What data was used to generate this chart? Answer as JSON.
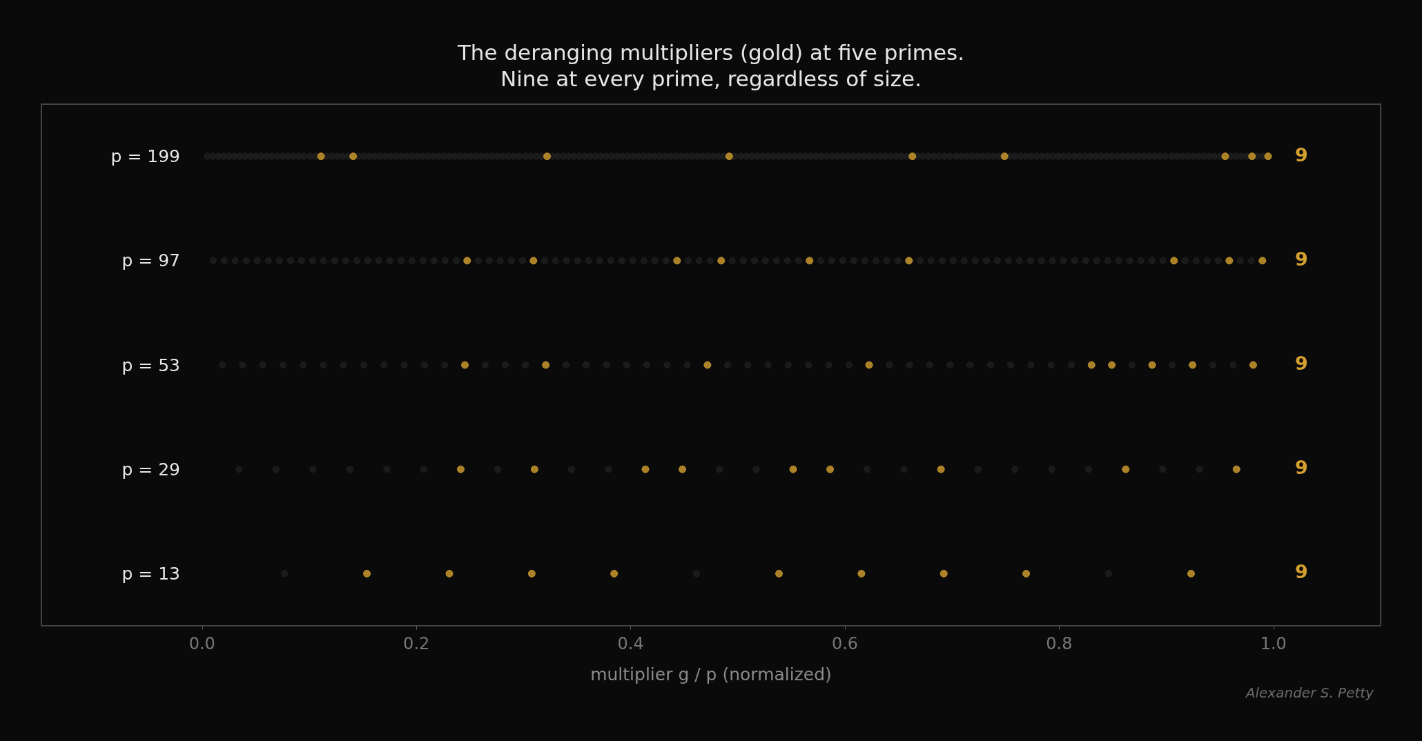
{
  "chart_data": {
    "type": "scatter",
    "orientation": "horizontal",
    "title": "The deranging multipliers (gold) at five primes.\nNine at every prime, regardless of size.",
    "xlabel": "multiplier g / p (normalized)",
    "categories": [
      "p = 199",
      "p = 97",
      "p = 53",
      "p = 29",
      "p = 13"
    ],
    "xlim": [
      -0.15,
      1.1
    ],
    "xticks": [
      {
        "value": 0,
        "label": "0.0"
      },
      0.2,
      0.4,
      0.6,
      0.8,
      {
        "value": 1,
        "label": "1.0"
      }
    ],
    "marker": "circle",
    "annotations": [
      "9",
      "9",
      "9",
      "9",
      "9",
      "Alexander S. Petty"
    ],
    "series": [
      {
        "color": "#1e1e1e",
        "values": [
          0.005,
          0.01,
          0.015,
          0.02,
          0.025,
          0.03,
          0.035,
          0.04,
          0.045,
          0.05,
          0.055,
          0.06,
          0.065,
          0.07,
          0.075,
          0.08,
          0.085,
          0.09,
          0.095,
          0.101,
          0.106,
          0.116,
          0.121,
          0.126,
          0.131,
          0.136,
          0.146,
          0.151,
          0.156,
          0.161,
          0.166,
          0.171,
          0.176,
          0.181,
          0.186,
          0.191,
          0.196,
          0.201,
          0.206,
          0.211,
          0.216,
          0.221,
          0.226,
          0.231,
          0.236,
          0.241,
          0.246,
          0.251,
          0.256,
          0.261,
          0.266,
          0.271,
          0.276,
          0.281,
          0.286,
          0.291,
          0.296,
          0.302,
          0.307,
          0.312,
          0.317,
          0.327,
          0.332,
          0.337,
          0.342,
          0.347,
          0.352,
          0.357,
          0.362,
          0.367,
          0.372,
          0.377,
          0.382,
          0.387,
          0.392,
          0.397,
          0.402,
          0.407,
          0.412,
          0.417,
          0.422,
          0.427,
          0.432,
          0.437,
          0.442,
          0.447,
          0.452,
          0.457,
          0.462,
          0.467,
          0.472,
          0.477,
          0.482,
          0.487,
          0.497,
          0.503,
          0.508,
          0.513,
          0.518,
          0.523,
          0.528,
          0.533,
          0.538,
          0.543,
          0.548,
          0.553,
          0.558,
          0.563,
          0.568,
          0.573,
          0.578,
          0.583,
          0.588,
          0.593,
          0.598,
          0.603,
          0.608,
          0.613,
          0.618,
          0.623,
          0.628,
          0.633,
          0.638,
          0.643,
          0.648,
          0.653,
          0.658,
          0.668,
          0.673,
          0.678,
          0.683,
          0.688,
          0.693,
          0.698,
          0.704,
          0.709,
          0.714,
          0.719,
          0.724,
          0.729,
          0.734,
          0.739,
          0.744,
          0.754,
          0.759,
          0.764,
          0.769,
          0.774,
          0.779,
          0.784,
          0.789,
          0.794,
          0.799,
          0.804,
          0.809,
          0.814,
          0.819,
          0.824,
          0.829,
          0.834,
          0.839,
          0.844,
          0.849,
          0.854,
          0.859,
          0.864,
          0.869,
          0.874,
          0.879,
          0.884,
          0.889,
          0.894,
          0.899,
          0.905,
          0.91,
          0.915,
          0.92,
          0.925,
          0.93,
          0.935,
          0.94,
          0.945,
          0.95,
          0.96,
          0.965,
          0.97,
          0.975,
          0.985,
          0.99
        ],
        "x": [
          "p = 199",
          "p = 199",
          "p = 199",
          "p = 199",
          "p = 199",
          "p = 199",
          "p = 199",
          "p = 199",
          "p = 199",
          "p = 199",
          "p = 199",
          "p = 199",
          "p = 199",
          "p = 199",
          "p = 199",
          "p = 199",
          "p = 199",
          "p = 199",
          "p = 199",
          "p = 199",
          "p = 199",
          "p = 199",
          "p = 199",
          "p = 199",
          "p = 199",
          "p = 199",
          "p = 199",
          "p = 199",
          "p = 199",
          "p = 199",
          "p = 199",
          "p = 199",
          "p = 199",
          "p = 199",
          "p = 199",
          "p = 199",
          "p = 199",
          "p = 199",
          "p = 199",
          "p = 199",
          "p = 199",
          "p = 199",
          "p = 199",
          "p = 199",
          "p = 199",
          "p = 199",
          "p = 199",
          "p = 199",
          "p = 199",
          "p = 199",
          "p = 199",
          "p = 199",
          "p = 199",
          "p = 199",
          "p = 199",
          "p = 199",
          "p = 199",
          "p = 199",
          "p = 199",
          "p = 199",
          "p = 199",
          "p = 199",
          "p = 199",
          "p = 199",
          "p = 199",
          "p = 199",
          "p = 199",
          "p = 199",
          "p = 199",
          "p = 199",
          "p = 199",
          "p = 199",
          "p = 199",
          "p = 199",
          "p = 199",
          "p = 199",
          "p = 199",
          "p = 199",
          "p = 199",
          "p = 199",
          "p = 199",
          "p = 199",
          "p = 199",
          "p = 199",
          "p = 199",
          "p = 199",
          "p = 199",
          "p = 199",
          "p = 199",
          "p = 199",
          "p = 199",
          "p = 199",
          "p = 199",
          "p = 199",
          "p = 199",
          "p = 199",
          "p = 199",
          "p = 199",
          "p = 199",
          "p = 199",
          "p = 199",
          "p = 199",
          "p = 199",
          "p = 199",
          "p = 199",
          "p = 199",
          "p = 199",
          "p = 199",
          "p = 199",
          "p = 199",
          "p = 199",
          "p = 199",
          "p = 199",
          "p = 199",
          "p = 199",
          "p = 199",
          "p = 199",
          "p = 199",
          "p = 199",
          "p = 199",
          "p = 199",
          "p = 199",
          "p = 199",
          "p = 199",
          "p = 199",
          "p = 199",
          "p = 199",
          "p = 199",
          "p = 199",
          "p = 199",
          "p = 199",
          "p = 199",
          "p = 199",
          "p = 199",
          "p = 199",
          "p = 199",
          "p = 199",
          "p = 199",
          "p = 199",
          "p = 199",
          "p = 199",
          "p = 199",
          "p = 199",
          "p = 199",
          "p = 199",
          "p = 199",
          "p = 199",
          "p = 199",
          "p = 199",
          "p = 199",
          "p = 199",
          "p = 199",
          "p = 199",
          "p = 199",
          "p = 199",
          "p = 199",
          "p = 199",
          "p = 199",
          "p = 199",
          "p = 199",
          "p = 199",
          "p = 199",
          "p = 199",
          "p = 199",
          "p = 199",
          "p = 199",
          "p = 199",
          "p = 199",
          "p = 199",
          "p = 199",
          "p = 199",
          "p = 199",
          "p = 199",
          "p = 199",
          "p = 199",
          "p = 199",
          "p = 199",
          "p = 199",
          "p = 199",
          "p = 199",
          "p = 199",
          "p = 199",
          "p = 199",
          "p = 199",
          "p = 199",
          "p = 199",
          "p = 199",
          "p = 199",
          "p = 199"
        ]
      },
      {
        "color": "#d4a030",
        "values": [
          0.111,
          0.141,
          0.322,
          0.492,
          0.663,
          0.749,
          0.955,
          0.98,
          0.995
        ],
        "x": [
          "p = 199",
          "p = 199",
          "p = 199",
          "p = 199",
          "p = 199",
          "p = 199",
          "p = 199",
          "p = 199",
          "p = 199"
        ]
      },
      {
        "color": "#1e1e1e",
        "values": [
          0.0103,
          0.0206,
          0.0309,
          0.0412,
          0.0515,
          0.0619,
          0.0722,
          0.0825,
          0.0928,
          0.1031,
          0.1134,
          0.1237,
          0.134,
          0.1443,
          0.1546,
          0.1649,
          0.1753,
          0.1856,
          0.1959,
          0.2062,
          0.2165,
          0.2268,
          0.2371,
          0.2577,
          0.268,
          0.2784,
          0.2887,
          0.299,
          0.3196,
          0.3299,
          0.3402,
          0.3505,
          0.3608,
          0.3711,
          0.3814,
          0.3918,
          0.4021,
          0.4124,
          0.4227,
          0.433,
          0.4536,
          0.4639,
          0.4742,
          0.4948,
          0.5052,
          0.5155,
          0.5258,
          0.5361,
          0.5464,
          0.5567,
          0.5773,
          0.5876,
          0.5979,
          0.6082,
          0.6186,
          0.6289,
          0.6392,
          0.6495,
          0.6701,
          0.6804,
          0.6907,
          0.701,
          0.7113,
          0.7216,
          0.732,
          0.7423,
          0.7526,
          0.7629,
          0.7732,
          0.7835,
          0.7938,
          0.8041,
          0.8144,
          0.8247,
          0.8351,
          0.8454,
          0.8557,
          0.866,
          0.8763,
          0.8866,
          0.8969,
          0.9175,
          0.9278,
          0.9381,
          0.9485,
          0.9691,
          0.9794
        ],
        "x": [
          "p = 97",
          "p = 97",
          "p = 97",
          "p = 97",
          "p = 97",
          "p = 97",
          "p = 97",
          "p = 97",
          "p = 97",
          "p = 97",
          "p = 97",
          "p = 97",
          "p = 97",
          "p = 97",
          "p = 97",
          "p = 97",
          "p = 97",
          "p = 97",
          "p = 97",
          "p = 97",
          "p = 97",
          "p = 97",
          "p = 97",
          "p = 97",
          "p = 97",
          "p = 97",
          "p = 97",
          "p = 97",
          "p = 97",
          "p = 97",
          "p = 97",
          "p = 97",
          "p = 97",
          "p = 97",
          "p = 97",
          "p = 97",
          "p = 97",
          "p = 97",
          "p = 97",
          "p = 97",
          "p = 97",
          "p = 97",
          "p = 97",
          "p = 97",
          "p = 97",
          "p = 97",
          "p = 97",
          "p = 97",
          "p = 97",
          "p = 97",
          "p = 97",
          "p = 97",
          "p = 97",
          "p = 97",
          "p = 97",
          "p = 97",
          "p = 97",
          "p = 97",
          "p = 97",
          "p = 97",
          "p = 97",
          "p = 97",
          "p = 97",
          "p = 97",
          "p = 97",
          "p = 97",
          "p = 97",
          "p = 97",
          "p = 97",
          "p = 97",
          "p = 97",
          "p = 97",
          "p = 97",
          "p = 97",
          "p = 97",
          "p = 97",
          "p = 97",
          "p = 97",
          "p = 97",
          "p = 97",
          "p = 97",
          "p = 97",
          "p = 97",
          "p = 97",
          "p = 97",
          "p = 97",
          "p = 97"
        ]
      },
      {
        "color": "#d4a030",
        "values": [
          0.2474,
          0.3093,
          0.4433,
          0.4845,
          0.567,
          0.6598,
          0.9072,
          0.9588,
          0.9897
        ],
        "x": [
          "p = 97",
          "p = 97",
          "p = 97",
          "p = 97",
          "p = 97",
          "p = 97",
          "p = 97",
          "p = 97",
          "p = 97"
        ]
      },
      {
        "color": "#1e1e1e",
        "values": [
          0.0189,
          0.0377,
          0.0566,
          0.0755,
          0.0943,
          0.1132,
          0.1321,
          0.1509,
          0.1698,
          0.1887,
          0.2075,
          0.2264,
          0.2642,
          0.283,
          0.3019,
          0.3396,
          0.3585,
          0.3774,
          0.3962,
          0.4151,
          0.434,
          0.4528,
          0.4906,
          0.5094,
          0.5283,
          0.5472,
          0.566,
          0.5849,
          0.6038,
          0.6415,
          0.6604,
          0.6792,
          0.6981,
          0.717,
          0.7358,
          0.7547,
          0.7736,
          0.7925,
          0.8113,
          0.8679,
          0.9057,
          0.9434,
          0.9623
        ],
        "x": [
          "p = 53",
          "p = 53",
          "p = 53",
          "p = 53",
          "p = 53",
          "p = 53",
          "p = 53",
          "p = 53",
          "p = 53",
          "p = 53",
          "p = 53",
          "p = 53",
          "p = 53",
          "p = 53",
          "p = 53",
          "p = 53",
          "p = 53",
          "p = 53",
          "p = 53",
          "p = 53",
          "p = 53",
          "p = 53",
          "p = 53",
          "p = 53",
          "p = 53",
          "p = 53",
          "p = 53",
          "p = 53",
          "p = 53",
          "p = 53",
          "p = 53",
          "p = 53",
          "p = 53",
          "p = 53",
          "p = 53",
          "p = 53",
          "p = 53",
          "p = 53",
          "p = 53",
          "p = 53",
          "p = 53",
          "p = 53",
          "p = 53"
        ]
      },
      {
        "color": "#d4a030",
        "values": [
          0.2453,
          0.3208,
          0.4717,
          0.6226,
          0.8302,
          0.8491,
          0.8868,
          0.9245,
          0.9811
        ],
        "x": [
          "p = 53",
          "p = 53",
          "p = 53",
          "p = 53",
          "p = 53",
          "p = 53",
          "p = 53",
          "p = 53",
          "p = 53"
        ]
      },
      {
        "color": "#1e1e1e",
        "values": [
          0.0345,
          0.069,
          0.1034,
          0.1379,
          0.1724,
          0.2069,
          0.2759,
          0.3448,
          0.3793,
          0.4828,
          0.5172,
          0.6207,
          0.6552,
          0.7241,
          0.7586,
          0.7931,
          0.8276,
          0.8966,
          0.931
        ],
        "x": [
          "p = 29",
          "p = 29",
          "p = 29",
          "p = 29",
          "p = 29",
          "p = 29",
          "p = 29",
          "p = 29",
          "p = 29",
          "p = 29",
          "p = 29",
          "p = 29",
          "p = 29",
          "p = 29",
          "p = 29",
          "p = 29",
          "p = 29",
          "p = 29",
          "p = 29"
        ]
      },
      {
        "color": "#d4a030",
        "values": [
          0.2414,
          0.3103,
          0.4138,
          0.4483,
          0.5517,
          0.5862,
          0.6897,
          0.8621,
          0.9655
        ],
        "x": [
          "p = 29",
          "p = 29",
          "p = 29",
          "p = 29",
          "p = 29",
          "p = 29",
          "p = 29",
          "p = 29",
          "p = 29"
        ]
      },
      {
        "color": "#1e1e1e",
        "values": [
          0.0769,
          0.4615,
          0.8462
        ],
        "x": [
          "p = 13",
          "p = 13",
          "p = 13"
        ]
      },
      {
        "color": "#d4a030",
        "values": [
          0.1538,
          0.2308,
          0.3077,
          0.3846,
          0.5385,
          0.6154,
          0.6923,
          0.7692,
          0.9231
        ],
        "x": [
          "p = 13",
          "p = 13",
          "p = 13",
          "p = 13",
          "p = 13",
          "p = 13",
          "p = 13",
          "p = 13",
          "p = 13"
        ]
      }
    ]
  }
}
